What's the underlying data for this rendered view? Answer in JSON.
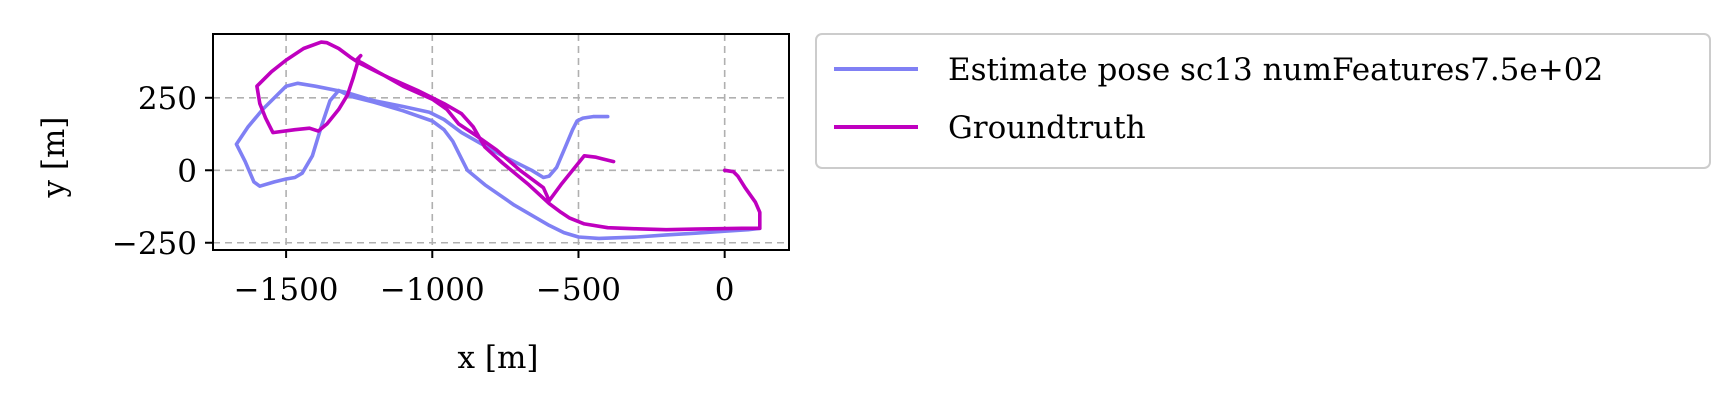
{
  "chart_data": {
    "type": "line",
    "xlabel": "x [m]",
    "ylabel": "y [m]",
    "xlim": [
      -1750,
      220
    ],
    "ylim": [
      -275,
      470
    ],
    "xticks": [
      -1500,
      -1000,
      -500,
      0
    ],
    "yticks": [
      -250,
      0,
      250
    ],
    "xtick_labels": [
      "−1500",
      "−1000",
      "−500",
      "0"
    ],
    "ytick_labels": [
      "−250",
      "0",
      "250"
    ],
    "grid": true,
    "legend_position": "outside-right-top",
    "series": [
      {
        "name": "Estimate pose sc13 numFeatures7.5e+02",
        "color": "#8080f4",
        "points": [
          [
            -400,
            185
          ],
          [
            -450,
            185
          ],
          [
            -485,
            180
          ],
          [
            -505,
            170
          ],
          [
            -520,
            140
          ],
          [
            -545,
            80
          ],
          [
            -575,
            10
          ],
          [
            -600,
            -20
          ],
          [
            -620,
            -25
          ],
          [
            -660,
            0
          ],
          [
            -760,
            50
          ],
          [
            -900,
            130
          ],
          [
            -960,
            175
          ],
          [
            -1010,
            200
          ],
          [
            -1100,
            220
          ],
          [
            -1200,
            240
          ],
          [
            -1300,
            270
          ],
          [
            -1400,
            290
          ],
          [
            -1460,
            300
          ],
          [
            -1500,
            290
          ],
          [
            -1530,
            260
          ],
          [
            -1580,
            210
          ],
          [
            -1630,
            150
          ],
          [
            -1670,
            90
          ],
          [
            -1640,
            30
          ],
          [
            -1610,
            -40
          ],
          [
            -1590,
            -55
          ],
          [
            -1540,
            -40
          ],
          [
            -1500,
            -30
          ],
          [
            -1470,
            -25
          ],
          [
            -1445,
            -10
          ],
          [
            -1410,
            50
          ],
          [
            -1380,
            150
          ],
          [
            -1350,
            240
          ],
          [
            -1320,
            275
          ],
          [
            -1280,
            255
          ],
          [
            -1200,
            235
          ],
          [
            -1100,
            205
          ],
          [
            -1000,
            170
          ],
          [
            -960,
            140
          ],
          [
            -930,
            100
          ],
          [
            -900,
            40
          ],
          [
            -880,
            0
          ],
          [
            -820,
            -50
          ],
          [
            -720,
            -120
          ],
          [
            -600,
            -190
          ],
          [
            -550,
            -215
          ],
          [
            -500,
            -230
          ],
          [
            -430,
            -235
          ],
          [
            -300,
            -230
          ],
          [
            -200,
            -223
          ],
          [
            -100,
            -217
          ],
          [
            0,
            -210
          ],
          [
            80,
            -205
          ],
          [
            120,
            -200
          ]
        ]
      },
      {
        "name": "Groundtruth",
        "color": "#bf00bf",
        "points": [
          [
            0,
            0
          ],
          [
            30,
            -5
          ],
          [
            45,
            -20
          ],
          [
            70,
            -60
          ],
          [
            105,
            -110
          ],
          [
            120,
            -145
          ],
          [
            120,
            -200
          ],
          [
            60,
            -200
          ],
          [
            -100,
            -203
          ],
          [
            -200,
            -205
          ],
          [
            -300,
            -202
          ],
          [
            -400,
            -198
          ],
          [
            -480,
            -185
          ],
          [
            -530,
            -165
          ],
          [
            -560,
            -145
          ],
          [
            -600,
            -115
          ],
          [
            -670,
            -50
          ],
          [
            -760,
            25
          ],
          [
            -820,
            80
          ],
          [
            -860,
            150
          ],
          [
            -900,
            195
          ],
          [
            -960,
            230
          ],
          [
            -1050,
            275
          ],
          [
            -1150,
            320
          ],
          [
            -1250,
            370
          ],
          [
            -1280,
            390
          ],
          [
            -1320,
            420
          ],
          [
            -1360,
            440
          ],
          [
            -1380,
            442
          ],
          [
            -1440,
            420
          ],
          [
            -1500,
            380
          ],
          [
            -1550,
            340
          ],
          [
            -1600,
            290
          ],
          [
            -1590,
            230
          ],
          [
            -1570,
            180
          ],
          [
            -1545,
            130
          ],
          [
            -1470,
            140
          ],
          [
            -1420,
            145
          ],
          [
            -1390,
            135
          ],
          [
            -1360,
            160
          ],
          [
            -1320,
            210
          ],
          [
            -1290,
            260
          ],
          [
            -1270,
            320
          ],
          [
            -1250,
            390
          ],
          [
            -1245,
            395
          ],
          [
            -1260,
            380
          ],
          [
            -1240,
            370
          ],
          [
            -1170,
            330
          ],
          [
            -1100,
            290
          ],
          [
            -1000,
            245
          ],
          [
            -950,
            210
          ],
          [
            -910,
            160
          ],
          [
            -850,
            120
          ],
          [
            -780,
            70
          ],
          [
            -700,
            0
          ],
          [
            -620,
            -60
          ],
          [
            -600,
            -105
          ],
          [
            -560,
            -50
          ],
          [
            -520,
            0
          ],
          [
            -480,
            50
          ],
          [
            -440,
            45
          ],
          [
            -420,
            40
          ],
          [
            -380,
            30
          ]
        ]
      }
    ]
  }
}
